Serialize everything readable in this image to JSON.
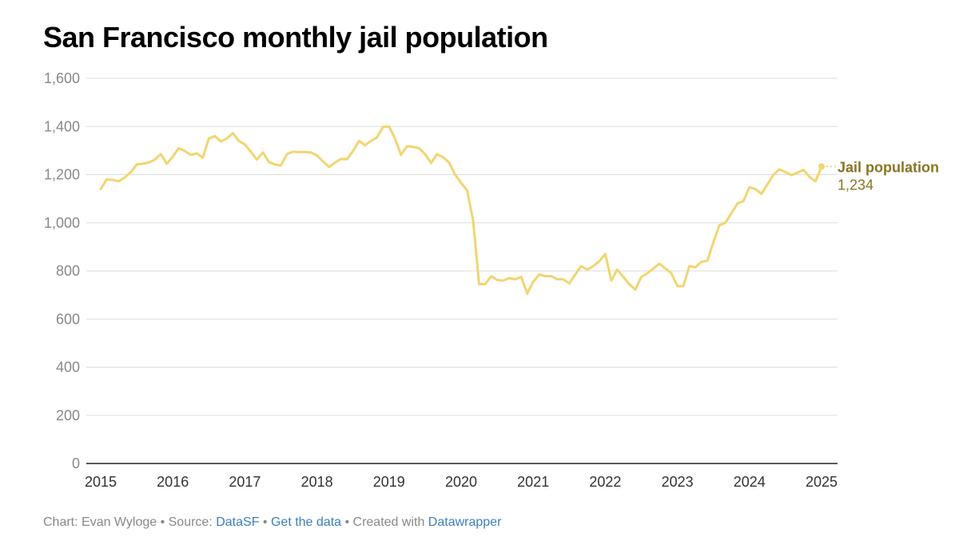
{
  "chart_title": "San Francisco monthly jail population",
  "colors": {
    "line": "#f1d570",
    "label": "#8a7420",
    "grid": "#dddddd",
    "axis": "#222222",
    "ticktext": "#888888",
    "link": "#3b7fbf"
  },
  "footer": {
    "chart_prefix": "Chart: Evan Wyloge",
    "sep1": " • Source: ",
    "source": "DataSF",
    "sep2": " • ",
    "get_data": "Get the data",
    "sep3": " • Created with ",
    "tool": "Datawrapper"
  },
  "chart_data": {
    "type": "line",
    "title": "San Francisco monthly jail population",
    "xlabel": "",
    "ylabel": "",
    "ylim": [
      0,
      1600
    ],
    "yticks": [
      0,
      200,
      400,
      600,
      800,
      1000,
      1200,
      1400,
      1600
    ],
    "ytick_labels": [
      "0",
      "200",
      "400",
      "600",
      "800",
      "1,000",
      "1,200",
      "1,400",
      "1,600"
    ],
    "xlim": [
      2015,
      2025
    ],
    "xticks": [
      2015,
      2016,
      2017,
      2018,
      2019,
      2020,
      2021,
      2022,
      2023,
      2024,
      2025
    ],
    "xtick_labels": [
      "2015",
      "2016",
      "2017",
      "2018",
      "2019",
      "2020",
      "2021",
      "2022",
      "2023",
      "2024",
      "2025"
    ],
    "grid": true,
    "series": [
      {
        "name": "Jail population",
        "last_label": "Jail population",
        "last_value_label": "1,234",
        "start": 2015,
        "step_months": 1,
        "values": [
          1140,
          1180,
          1178,
          1172,
          1188,
          1210,
          1242,
          1245,
          1250,
          1262,
          1285,
          1245,
          1275,
          1310,
          1298,
          1282,
          1288,
          1270,
          1350,
          1360,
          1338,
          1350,
          1372,
          1340,
          1325,
          1295,
          1262,
          1292,
          1252,
          1242,
          1238,
          1285,
          1295,
          1294,
          1294,
          1292,
          1280,
          1255,
          1232,
          1250,
          1265,
          1264,
          1298,
          1340,
          1322,
          1340,
          1355,
          1398,
          1400,
          1350,
          1282,
          1318,
          1315,
          1310,
          1285,
          1248,
          1285,
          1272,
          1250,
          1200,
          1165,
          1135,
          1010,
          745,
          745,
          778,
          762,
          760,
          770,
          765,
          775,
          705,
          755,
          785,
          778,
          778,
          765,
          765,
          748,
          785,
          820,
          805,
          820,
          840,
          870,
          760,
          805,
          775,
          745,
          722,
          775,
          790,
          810,
          830,
          810,
          790,
          737,
          737,
          820,
          815,
          838,
          842,
          920,
          990,
          1000,
          1040,
          1080,
          1090,
          1148,
          1140,
          1120,
          1160,
          1200,
          1222,
          1210,
          1198,
          1208,
          1220,
          1190,
          1172,
          1234
        ]
      }
    ]
  }
}
